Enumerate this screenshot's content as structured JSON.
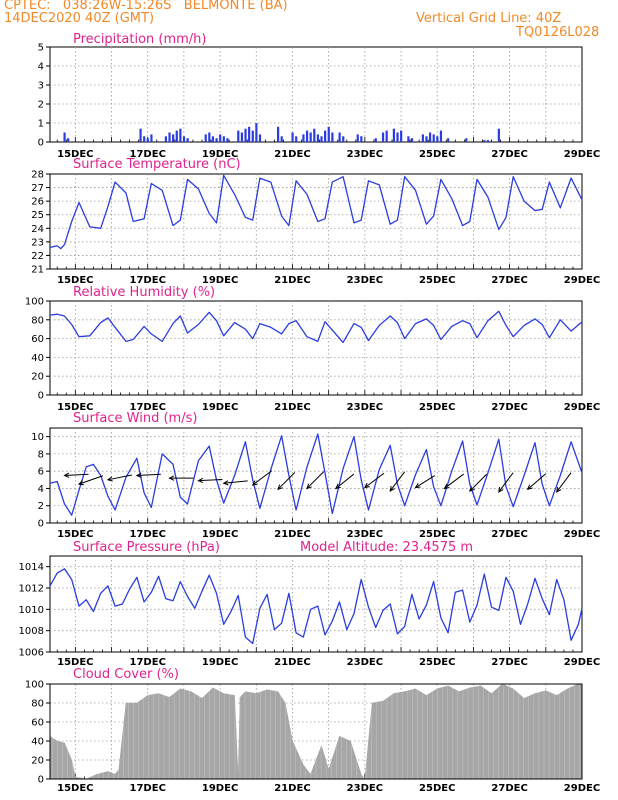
{
  "header": {
    "line1": "CPTEC:   038:26W-15:26S   BELMONTE (BA)",
    "line2": "14DEC2020 40Z (GMT)",
    "grid_note": "Vertical Grid Line: 40Z",
    "code": "TQ0126L028"
  },
  "colors": {
    "header": "#f08a28",
    "title": "#e0238c",
    "series": "#2b3de0",
    "cloud": "#a6a6a6",
    "arrow": "#000000",
    "grid": "#9a9a9a"
  },
  "chart_data": [
    {
      "id": "precip",
      "type": "bar",
      "title": "Precipitation (mm/h)",
      "ylim": [
        0,
        5
      ],
      "yticks": [
        0,
        1,
        2,
        3,
        4,
        5
      ],
      "xlim": [
        14.3,
        29.0
      ],
      "xticks": [
        "15DEC",
        "17DEC",
        "19DEC",
        "21DEC",
        "23DEC",
        "25DEC",
        "27DEC",
        "29DEC"
      ],
      "x": [
        14.7,
        14.8,
        16.8,
        16.9,
        17.0,
        17.1,
        17.5,
        17.6,
        17.7,
        17.8,
        17.9,
        18.0,
        18.1,
        18.6,
        18.7,
        18.8,
        18.9,
        19.0,
        19.1,
        19.2,
        19.5,
        19.6,
        19.7,
        19.8,
        19.9,
        20.0,
        20.1,
        20.6,
        20.7,
        21.0,
        21.1,
        21.3,
        21.4,
        21.5,
        21.6,
        21.7,
        21.8,
        21.9,
        22.0,
        22.1,
        22.3,
        22.4,
        22.8,
        22.9,
        23.3,
        23.5,
        23.6,
        23.8,
        23.9,
        24.0,
        24.2,
        24.3,
        24.6,
        24.7,
        24.8,
        24.9,
        25.0,
        25.1,
        25.3,
        25.8,
        26.3,
        26.4,
        26.7
      ],
      "values": [
        0.5,
        0.2,
        0.7,
        0.3,
        0.2,
        0.4,
        0.3,
        0.5,
        0.4,
        0.6,
        0.7,
        0.3,
        0.2,
        0.4,
        0.5,
        0.3,
        0.2,
        0.4,
        0.3,
        0.2,
        0.6,
        0.5,
        0.7,
        0.8,
        0.6,
        1.0,
        0.4,
        0.8,
        0.3,
        0.5,
        0.3,
        0.4,
        0.6,
        0.5,
        0.7,
        0.4,
        0.3,
        0.6,
        0.8,
        0.5,
        0.5,
        0.3,
        0.4,
        0.3,
        0.2,
        0.5,
        0.6,
        0.7,
        0.5,
        0.6,
        0.3,
        0.2,
        0.4,
        0.3,
        0.5,
        0.4,
        0.3,
        0.6,
        0.2,
        0.2,
        0.1,
        0.1,
        0.7
      ]
    },
    {
      "id": "temp",
      "type": "line",
      "title": "Surface Temperature (nC)",
      "ylim": [
        21,
        28
      ],
      "yticks": [
        21,
        22,
        23,
        24,
        25,
        26,
        27,
        28
      ],
      "xlim": [
        14.3,
        29.0
      ],
      "xticks": [
        "15DEC",
        "17DEC",
        "19DEC",
        "21DEC",
        "23DEC",
        "25DEC",
        "27DEC",
        "29DEC"
      ],
      "x": [
        14.3,
        14.5,
        14.6,
        14.7,
        14.9,
        15.1,
        15.4,
        15.7,
        15.9,
        16.1,
        16.4,
        16.6,
        16.9,
        17.1,
        17.4,
        17.7,
        17.9,
        18.1,
        18.4,
        18.7,
        18.9,
        19.1,
        19.4,
        19.7,
        19.9,
        20.1,
        20.4,
        20.7,
        20.9,
        21.1,
        21.4,
        21.7,
        21.9,
        22.1,
        22.4,
        22.7,
        22.9,
        23.1,
        23.4,
        23.7,
        23.9,
        24.1,
        24.4,
        24.7,
        24.9,
        25.1,
        25.4,
        25.7,
        25.9,
        26.1,
        26.4,
        26.7,
        26.9,
        27.1,
        27.4,
        27.7,
        27.9,
        28.1,
        28.4,
        28.7,
        29.0
      ],
      "values": [
        22.6,
        22.7,
        22.5,
        22.8,
        24.5,
        25.9,
        24.1,
        24.0,
        25.6,
        27.4,
        26.6,
        24.5,
        24.7,
        27.3,
        26.8,
        24.2,
        24.6,
        27.6,
        26.9,
        25.1,
        24.4,
        27.9,
        26.5,
        24.8,
        24.6,
        27.7,
        27.4,
        24.9,
        24.2,
        27.5,
        26.5,
        24.5,
        24.7,
        27.4,
        27.8,
        24.4,
        24.6,
        27.5,
        27.2,
        24.3,
        24.6,
        27.8,
        26.8,
        24.3,
        24.9,
        27.6,
        26.2,
        24.2,
        24.5,
        27.6,
        26.3,
        23.9,
        24.8,
        27.8,
        26.0,
        25.3,
        25.4,
        27.4,
        25.5,
        27.7,
        26.1
      ]
    },
    {
      "id": "rh",
      "type": "line",
      "title": "Relative Humidity (%)",
      "ylim": [
        0,
        100
      ],
      "yticks": [
        0,
        20,
        40,
        60,
        80,
        100
      ],
      "xlim": [
        14.3,
        29.0
      ],
      "xticks": [
        "15DEC",
        "17DEC",
        "19DEC",
        "21DEC",
        "23DEC",
        "25DEC",
        "27DEC",
        "29DEC"
      ],
      "x": [
        14.3,
        14.5,
        14.7,
        14.9,
        15.1,
        15.4,
        15.7,
        15.9,
        16.1,
        16.4,
        16.6,
        16.9,
        17.1,
        17.4,
        17.7,
        17.9,
        18.1,
        18.4,
        18.7,
        18.9,
        19.1,
        19.4,
        19.7,
        19.9,
        20.1,
        20.4,
        20.7,
        20.9,
        21.1,
        21.4,
        21.7,
        21.9,
        22.1,
        22.4,
        22.7,
        22.9,
        23.1,
        23.4,
        23.7,
        23.9,
        24.1,
        24.4,
        24.7,
        24.9,
        25.1,
        25.4,
        25.7,
        25.9,
        26.1,
        26.4,
        26.7,
        26.9,
        27.1,
        27.4,
        27.7,
        27.9,
        28.1,
        28.4,
        28.7,
        29.0
      ],
      "values": [
        85,
        86,
        84,
        75,
        62,
        63,
        77,
        82,
        72,
        57,
        59,
        73,
        65,
        57,
        76,
        84,
        66,
        75,
        88,
        79,
        63,
        77,
        70,
        60,
        76,
        72,
        65,
        76,
        79,
        62,
        57,
        78,
        69,
        56,
        76,
        72,
        58,
        74,
        84,
        77,
        60,
        76,
        81,
        74,
        59,
        73,
        79,
        76,
        61,
        79,
        89,
        74,
        62,
        74,
        81,
        75,
        61,
        80,
        68,
        78
      ]
    },
    {
      "id": "wind",
      "type": "line",
      "title": "Surface Wind (m/s)",
      "ylim": [
        0,
        11
      ],
      "yticks": [
        0,
        2,
        4,
        6,
        8,
        10
      ],
      "xlim": [
        14.3,
        29.0
      ],
      "xticks": [
        "15DEC",
        "17DEC",
        "19DEC",
        "21DEC",
        "23DEC",
        "25DEC",
        "27DEC",
        "29DEC"
      ],
      "x": [
        14.3,
        14.5,
        14.7,
        14.9,
        15.1,
        15.3,
        15.5,
        15.7,
        15.9,
        16.1,
        16.4,
        16.7,
        16.9,
        17.1,
        17.4,
        17.7,
        17.9,
        18.1,
        18.4,
        18.7,
        18.9,
        19.1,
        19.4,
        19.7,
        19.9,
        20.1,
        20.4,
        20.7,
        20.9,
        21.1,
        21.4,
        21.7,
        21.9,
        22.1,
        22.4,
        22.7,
        22.9,
        23.1,
        23.4,
        23.7,
        23.9,
        24.1,
        24.4,
        24.7,
        24.9,
        25.1,
        25.4,
        25.7,
        25.9,
        26.1,
        26.4,
        26.7,
        26.9,
        27.1,
        27.4,
        27.7,
        27.9,
        28.1,
        28.4,
        28.7,
        29.0
      ],
      "values": [
        4.6,
        4.8,
        2.2,
        0.9,
        3.8,
        6.5,
        6.8,
        5.5,
        3.1,
        1.5,
        5.3,
        7.5,
        3.5,
        1.8,
        8.0,
        6.8,
        3.0,
        2.2,
        7.2,
        8.9,
        5.0,
        2.3,
        5.5,
        9.4,
        5.0,
        1.7,
        6.2,
        10.1,
        5.5,
        1.5,
        6.5,
        10.3,
        5.8,
        1.1,
        6.3,
        10.0,
        5.0,
        1.5,
        6.2,
        9.0,
        4.5,
        2.0,
        5.6,
        8.5,
        4.2,
        2.0,
        6.0,
        9.5,
        4.5,
        2.1,
        5.8,
        9.7,
        4.2,
        1.9,
        5.5,
        9.3,
        4.5,
        2.0,
        5.5,
        9.4,
        5.8
      ],
      "vectors": [
        {
          "x": 14.7,
          "y": 5.5,
          "u": 1.0,
          "v": 0.05
        },
        {
          "x": 15.1,
          "y": 4.5,
          "u": 1.0,
          "v": 0.35
        },
        {
          "x": 15.9,
          "y": 5.0,
          "u": 1.0,
          "v": 0.2
        },
        {
          "x": 16.7,
          "y": 5.5,
          "u": 1.0,
          "v": 0.05
        },
        {
          "x": 17.6,
          "y": 5.2,
          "u": 1.0,
          "v": 0.0
        },
        {
          "x": 18.4,
          "y": 4.9,
          "u": 1.0,
          "v": 0.05
        },
        {
          "x": 19.1,
          "y": 4.6,
          "u": 1.0,
          "v": 0.1
        },
        {
          "x": 19.9,
          "y": 4.4,
          "u": 0.8,
          "v": 0.6
        },
        {
          "x": 20.6,
          "y": 3.9,
          "u": 0.7,
          "v": 0.7
        },
        {
          "x": 21.4,
          "y": 4.0,
          "u": 0.7,
          "v": 0.7
        },
        {
          "x": 22.2,
          "y": 4.0,
          "u": 0.75,
          "v": 0.6
        },
        {
          "x": 23.0,
          "y": 4.1,
          "u": 0.8,
          "v": 0.6
        },
        {
          "x": 23.7,
          "y": 3.7,
          "u": 0.6,
          "v": 0.8
        },
        {
          "x": 24.4,
          "y": 4.1,
          "u": 0.8,
          "v": 0.5
        },
        {
          "x": 25.2,
          "y": 4.0,
          "u": 0.8,
          "v": 0.6
        },
        {
          "x": 25.9,
          "y": 3.7,
          "u": 0.7,
          "v": 0.7
        },
        {
          "x": 26.7,
          "y": 3.6,
          "u": 0.6,
          "v": 0.8
        },
        {
          "x": 27.5,
          "y": 3.9,
          "u": 0.75,
          "v": 0.65
        },
        {
          "x": 28.3,
          "y": 3.6,
          "u": 0.6,
          "v": 0.8
        }
      ]
    },
    {
      "id": "pres",
      "type": "line",
      "title": "Surface Pressure (hPa)",
      "subtitle": "Model Altitude: 23.4575 m",
      "ylim": [
        1006,
        1015
      ],
      "yticks": [
        1006,
        1008,
        1010,
        1012,
        1014
      ],
      "xlim": [
        14.3,
        29.0
      ],
      "xticks": [
        "15DEC",
        "17DEC",
        "19DEC",
        "21DEC",
        "23DEC",
        "25DEC",
        "27DEC",
        "29DEC"
      ],
      "x": [
        14.3,
        14.5,
        14.7,
        14.9,
        15.1,
        15.3,
        15.5,
        15.7,
        15.9,
        16.1,
        16.3,
        16.5,
        16.7,
        16.9,
        17.1,
        17.3,
        17.5,
        17.7,
        17.9,
        18.1,
        18.3,
        18.5,
        18.7,
        18.9,
        19.1,
        19.3,
        19.5,
        19.7,
        19.9,
        20.1,
        20.3,
        20.5,
        20.7,
        20.9,
        21.1,
        21.3,
        21.5,
        21.7,
        21.9,
        22.1,
        22.3,
        22.5,
        22.7,
        22.9,
        23.1,
        23.3,
        23.5,
        23.7,
        23.9,
        24.1,
        24.3,
        24.5,
        24.7,
        24.9,
        25.1,
        25.3,
        25.5,
        25.7,
        25.9,
        26.1,
        26.3,
        26.5,
        26.7,
        26.9,
        27.1,
        27.3,
        27.5,
        27.7,
        27.9,
        28.1,
        28.3,
        28.5,
        28.7,
        28.9,
        29.0
      ],
      "values": [
        1012.2,
        1013.4,
        1013.8,
        1012.8,
        1010.3,
        1010.9,
        1009.8,
        1011.5,
        1012.2,
        1010.3,
        1010.5,
        1011.9,
        1013.0,
        1010.7,
        1011.6,
        1013.1,
        1011.0,
        1010.8,
        1012.6,
        1011.2,
        1010.1,
        1011.7,
        1013.2,
        1011.5,
        1008.6,
        1009.8,
        1011.3,
        1007.4,
        1006.8,
        1010.1,
        1011.4,
        1008.1,
        1008.7,
        1011.5,
        1007.8,
        1007.4,
        1010.0,
        1010.3,
        1007.6,
        1008.9,
        1010.7,
        1008.1,
        1009.6,
        1012.8,
        1010.2,
        1008.3,
        1009.9,
        1010.5,
        1007.7,
        1008.4,
        1011.4,
        1009.1,
        1010.4,
        1012.6,
        1009.2,
        1007.8,
        1011.6,
        1011.8,
        1008.8,
        1010.4,
        1013.3,
        1010.2,
        1009.9,
        1013.0,
        1011.7,
        1008.6,
        1010.5,
        1012.9,
        1011.0,
        1009.5,
        1012.8,
        1010.9,
        1007.1,
        1008.6,
        1010.1
      ]
    },
    {
      "id": "cloud",
      "type": "area",
      "title": "Cloud Cover (%)",
      "ylim": [
        0,
        100
      ],
      "yticks": [
        0,
        20,
        40,
        60,
        80,
        100
      ],
      "xlim": [
        14.3,
        29.0
      ],
      "xticks": [
        "15DEC",
        "17DEC",
        "19DEC",
        "21DEC",
        "23DEC",
        "25DEC",
        "27DEC",
        "29DEC"
      ],
      "x": [
        14.3,
        14.5,
        14.7,
        14.9,
        15.0,
        15.3,
        15.6,
        15.9,
        16.1,
        16.2,
        16.4,
        16.7,
        17.0,
        17.3,
        17.6,
        17.9,
        18.2,
        18.5,
        18.8,
        19.1,
        19.4,
        19.5,
        19.55,
        19.7,
        20.0,
        20.3,
        20.6,
        20.8,
        21.0,
        21.3,
        21.5,
        21.8,
        22.0,
        22.3,
        22.6,
        22.9,
        23.0,
        23.2,
        23.5,
        23.8,
        24.1,
        24.4,
        24.7,
        25.0,
        25.3,
        25.6,
        25.9,
        26.2,
        26.5,
        26.8,
        27.1,
        27.4,
        27.7,
        28.0,
        28.3,
        28.6,
        28.9,
        29.0
      ],
      "values": [
        45,
        40,
        38,
        20,
        2,
        0,
        5,
        8,
        5,
        10,
        80,
        80,
        88,
        90,
        86,
        95,
        92,
        85,
        96,
        90,
        88,
        0,
        86,
        92,
        90,
        94,
        92,
        80,
        40,
        15,
        5,
        35,
        10,
        45,
        40,
        5,
        0,
        80,
        82,
        90,
        92,
        95,
        88,
        95,
        98,
        92,
        96,
        98,
        90,
        100,
        95,
        85,
        90,
        93,
        88,
        95,
        100,
        100
      ]
    }
  ]
}
